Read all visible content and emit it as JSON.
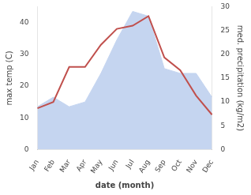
{
  "chart_data": {
    "type": "line",
    "categories": [
      "Jan",
      "Feb",
      "Mar",
      "Apr",
      "May",
      "Jun",
      "Jul",
      "Aug",
      "Sep",
      "Oct",
      "Nov",
      "Dec"
    ],
    "xlabel": "date (month)",
    "ylabel": "max temp (C)",
    "y2label": "med. precipitation (kg/m2)",
    "series": [
      {
        "type": "area",
        "axis": "y2",
        "color": "#c5d5f0",
        "values": [
          9,
          11,
          9,
          10,
          16,
          23,
          29,
          28,
          17,
          16,
          16,
          11
        ]
      },
      {
        "type": "line",
        "color": "#c0504d",
        "values": [
          13,
          15,
          26,
          26,
          33,
          38,
          39,
          42,
          29,
          25,
          17,
          11
        ]
      }
    ],
    "ylim": [
      0,
      45
    ],
    "yticks": [
      0,
      10,
      20,
      30,
      40
    ],
    "y2lim": [
      0,
      30
    ],
    "y2ticks": [
      0,
      5,
      10,
      15,
      20,
      25,
      30
    ],
    "grid": false
  }
}
